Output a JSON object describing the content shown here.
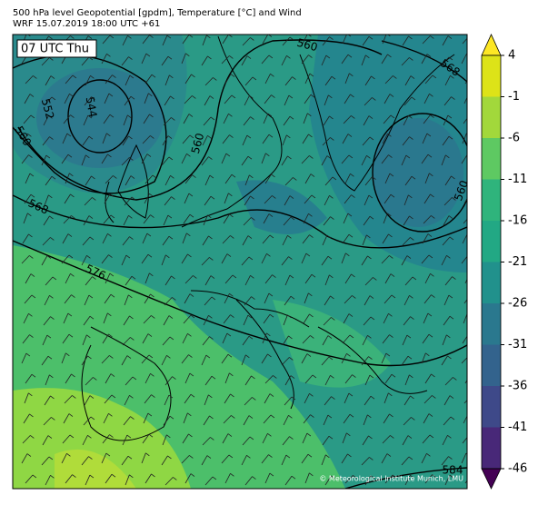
{
  "header": {
    "line1": "500 hPa level Geopotential [gpdm], Temperature [°C] and Wind",
    "line2": "WRF 15.07.2019 18:00 UTC +61"
  },
  "map": {
    "time_label": "07 UTC Thu",
    "contour_labels": [
      560,
      568,
      552,
      544,
      560,
      560,
      568,
      576,
      560,
      584
    ],
    "credit": "© Meteorological Institute Munich, LMU"
  },
  "colorbar": {
    "ticks": [
      4,
      -1,
      -6,
      -11,
      -16,
      -21,
      -26,
      -31,
      -36,
      -41,
      -46
    ],
    "colors": [
      "#fde725",
      "#dde318",
      "#a2d83b",
      "#5ec962",
      "#2fb47c",
      "#22a884",
      "#21918c",
      "#2a788e",
      "#33638d",
      "#3e4989",
      "#482878",
      "#440154"
    ]
  }
}
